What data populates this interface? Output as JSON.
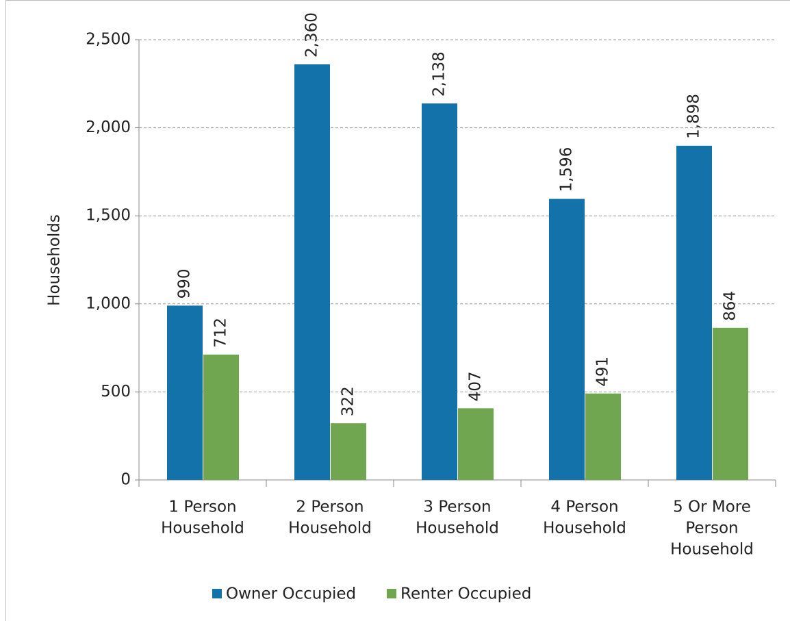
{
  "chart_data": {
    "type": "bar",
    "y_label": "Households",
    "categories": [
      [
        "1 Person",
        "Household"
      ],
      [
        "2 Person",
        "Household"
      ],
      [
        "3 Person",
        "Household"
      ],
      [
        "4 Person",
        "Household"
      ],
      [
        "5 Or More",
        "Person",
        "Household"
      ]
    ],
    "series": [
      {
        "name": "Owner Occupied",
        "color": "#1372a9",
        "values": [
          990,
          2360,
          2138,
          1596,
          1898
        ],
        "value_labels": [
          "990",
          "2,360",
          "2,138",
          "1,596",
          "1,898"
        ]
      },
      {
        "name": "Renter Occupied",
        "color": "#70a64f",
        "values": [
          712,
          322,
          407,
          491,
          864
        ],
        "value_labels": [
          "712",
          "322",
          "407",
          "491",
          "864"
        ]
      }
    ],
    "ylim": [
      0,
      2500
    ],
    "yticks": [
      0,
      500,
      {
        "value": 1000,
        "label": "1,000"
      },
      {
        "value": 1500,
        "label": "1,500"
      },
      {
        "value": 2000,
        "label": "2,000"
      },
      {
        "value": 2500,
        "label": "2,500"
      }
    ],
    "grid": true,
    "legend": "bottom"
  }
}
